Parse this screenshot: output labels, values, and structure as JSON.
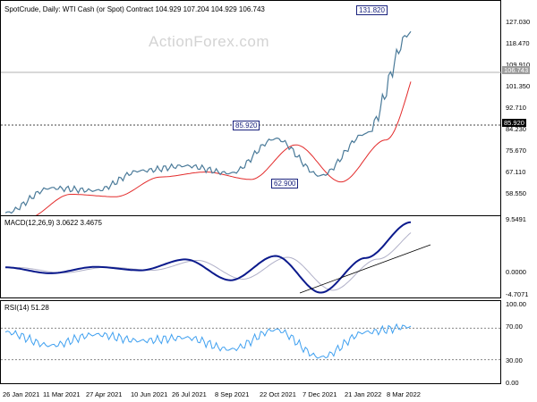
{
  "main": {
    "title": "SpotCrude, Daily:  WTI Cash (or Spot) Contract  104.929 107.204 104.929 106.743",
    "watermark": "ActionForex.com",
    "price_ticks": [
      "127.030",
      "118.470",
      "109.910",
      "101.350",
      "92.710",
      "84.230",
      "75.670",
      "67.110",
      "58.550"
    ],
    "current_price_label": "106.743",
    "level_label": "85.920",
    "annotations": {
      "high": "131.820",
      "support": "85.920",
      "low": "62.900"
    }
  },
  "macd": {
    "title": "MACD(12,26,9) 3.0622 3.4675",
    "ticks": [
      "9.5491",
      "0.0000",
      "-4.7071"
    ]
  },
  "rsi": {
    "title": "RSI(14) 51.28",
    "ticks": [
      "100.00",
      "70.00",
      "30.00",
      "0.00"
    ]
  },
  "dates": [
    "26 Jan 2021",
    "11 Mar 2021",
    "27 Apr 2021",
    "10 Jun 2021",
    "26 Jul 2021",
    "8 Sep 2021",
    "22 Oct 2021",
    "7 Dec 2021",
    "21 Jan 2022",
    "8 Mar 2022"
  ],
  "colors": {
    "price": "#4a7a99",
    "ma": "#e32b2b",
    "macd": "#0b1a8c",
    "signal": "#b0b0c8",
    "rsi": "#3fa0f0",
    "box": "#1a237e"
  },
  "chart_data": {
    "type": "line",
    "title": "SpotCrude, Daily: WTI Cash (or Spot) Contract",
    "ylim": [
      52,
      138
    ],
    "series": [
      {
        "name": "SpotCrude",
        "x": [
          "26 Jan 2021",
          "11 Mar 2021",
          "27 Apr 2021",
          "10 Jun 2021",
          "26 Jul 2021",
          "8 Sep 2021",
          "22 Oct 2021",
          "7 Dec 2021",
          "21 Jan 2022",
          "8 Mar 2022"
        ],
        "values": [
          53,
          63,
          62,
          70,
          72,
          69,
          83,
          68,
          85,
          126
        ]
      }
    ],
    "macd": {
      "ylim": [
        -5.5,
        10
      ],
      "values": [
        0.4,
        -0.8,
        0.5,
        -0.2,
        2.0,
        -2.2,
        2.7,
        -4.7,
        2.3,
        9.5
      ]
    },
    "rsi": {
      "ylim": [
        0,
        100
      ],
      "levels": [
        70,
        30
      ],
      "values": [
        65,
        48,
        62,
        54,
        58,
        43,
        68,
        33,
        65,
        72
      ]
    }
  }
}
